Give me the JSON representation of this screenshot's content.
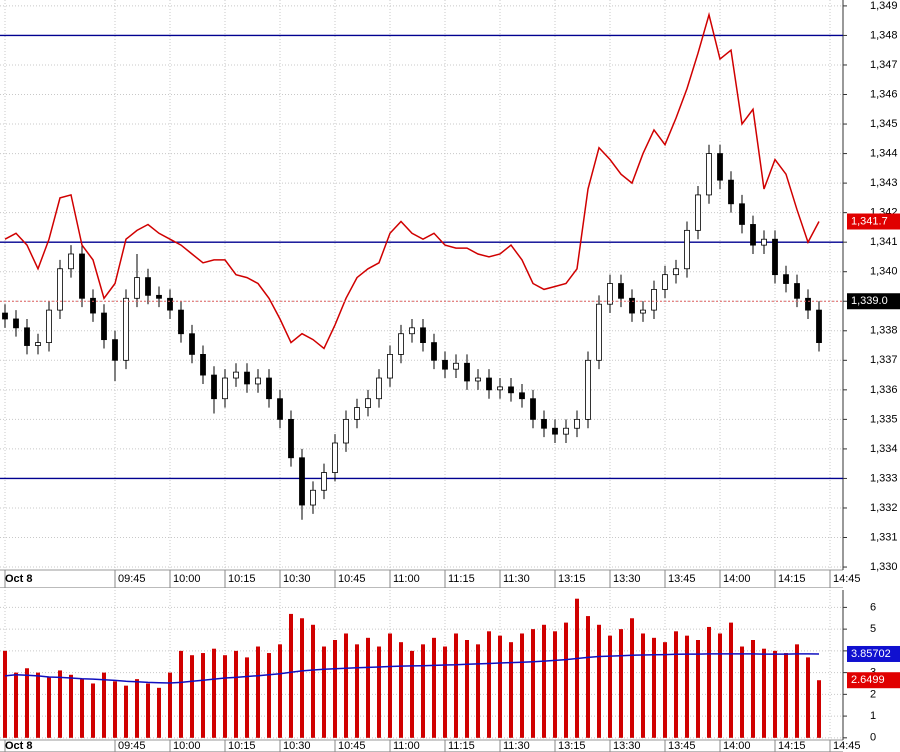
{
  "chart_data": [
    {
      "type": "candlestick",
      "categories": [
        "Oct 8",
        null,
        null,
        null,
        null,
        null,
        null,
        null,
        null,
        null,
        "09:45",
        null,
        null,
        null,
        null,
        "10:00",
        null,
        null,
        null,
        null,
        "10:15",
        null,
        null,
        null,
        null,
        "10:30",
        null,
        null,
        null,
        null,
        "10:45",
        null,
        null,
        null,
        null,
        "11:00",
        null,
        null,
        null,
        null,
        "11:15",
        null,
        null,
        null,
        null,
        "11:30",
        null,
        null,
        null,
        null,
        "13:15",
        null,
        null,
        null,
        null,
        "13:30",
        null,
        null,
        null,
        null,
        "13:45",
        null,
        null,
        null,
        null,
        "14:00",
        null,
        null,
        null,
        null,
        "14:15",
        null,
        null,
        null,
        null,
        "14:45"
      ],
      "open": [
        1338.6,
        1338.4,
        1338.1,
        1337.5,
        1337.6,
        1338.7,
        1340.1,
        1340.6,
        1339.1,
        1338.6,
        1337.7,
        1337.0,
        1339.1,
        1339.8,
        1339.2,
        1339.1,
        1338.7,
        1337.9,
        1337.2,
        1336.5,
        1335.7,
        1336.4,
        1336.6,
        1336.2,
        1336.4,
        1335.7,
        1335.0,
        1333.7,
        1332.1,
        1332.6,
        1333.2,
        1334.2,
        1335.0,
        1335.4,
        1335.7,
        1336.4,
        1337.2,
        1337.9,
        1338.1,
        1337.6,
        1337.0,
        1336.7,
        1336.9,
        1336.3,
        1336.4,
        1336.0,
        1336.1,
        1335.9,
        1335.7,
        1335.0,
        1334.7,
        1334.5,
        1334.7,
        1335.0,
        1337.0,
        1338.9,
        1339.6,
        1339.1,
        1338.6,
        1338.7,
        1339.4,
        1339.9,
        1340.1,
        1341.4,
        1342.6,
        1344.0,
        1343.1,
        1342.3,
        1341.6,
        1340.9,
        1341.1,
        1339.9,
        1339.6,
        1339.1,
        1338.7,
        null
      ],
      "high": [
        1338.9,
        1338.7,
        1338.4,
        1337.9,
        1339.0,
        1340.4,
        1340.9,
        1340.9,
        1339.4,
        1338.9,
        1338.0,
        1339.4,
        1340.6,
        1340.1,
        1339.5,
        1339.4,
        1339.0,
        1338.2,
        1337.5,
        1336.8,
        1336.7,
        1336.9,
        1336.9,
        1336.7,
        1336.7,
        1336.0,
        1335.3,
        1334.0,
        1332.9,
        1333.5,
        1334.5,
        1335.3,
        1335.7,
        1336.0,
        1336.7,
        1337.5,
        1338.2,
        1338.4,
        1338.4,
        1337.9,
        1337.3,
        1337.2,
        1337.2,
        1336.7,
        1336.7,
        1336.4,
        1336.4,
        1336.2,
        1336.0,
        1335.3,
        1335.0,
        1335.0,
        1335.3,
        1337.3,
        1339.2,
        1339.9,
        1339.9,
        1339.4,
        1339.0,
        1339.7,
        1340.2,
        1340.4,
        1341.7,
        1342.9,
        1344.3,
        1344.3,
        1343.4,
        1342.6,
        1341.9,
        1341.4,
        1341.4,
        1340.2,
        1339.9,
        1339.4,
        1339.0,
        null
      ],
      "low": [
        1338.1,
        1337.8,
        1337.2,
        1337.2,
        1337.3,
        1338.4,
        1339.8,
        1338.8,
        1338.3,
        1337.4,
        1336.3,
        1336.7,
        1338.8,
        1338.9,
        1338.8,
        1338.4,
        1337.6,
        1336.9,
        1336.2,
        1335.2,
        1335.4,
        1336.1,
        1335.9,
        1335.9,
        1335.4,
        1334.7,
        1333.4,
        1331.6,
        1331.8,
        1332.3,
        1332.9,
        1333.9,
        1334.7,
        1335.1,
        1335.4,
        1336.1,
        1336.9,
        1337.6,
        1337.3,
        1336.7,
        1336.4,
        1336.4,
        1336.0,
        1336.0,
        1335.7,
        1335.7,
        1335.6,
        1335.4,
        1334.7,
        1334.4,
        1334.2,
        1334.2,
        1334.4,
        1334.7,
        1336.7,
        1338.6,
        1338.8,
        1338.3,
        1338.3,
        1338.4,
        1339.1,
        1339.6,
        1339.8,
        1341.1,
        1342.3,
        1342.8,
        1342.0,
        1341.3,
        1340.6,
        1340.6,
        1339.6,
        1339.3,
        1338.8,
        1338.4,
        1337.3,
        null
      ],
      "close": [
        1338.4,
        1338.1,
        1337.5,
        1337.6,
        1338.7,
        1340.1,
        1340.6,
        1339.1,
        1338.6,
        1337.7,
        1337.0,
        1339.1,
        1339.8,
        1339.2,
        1339.1,
        1338.7,
        1337.9,
        1337.2,
        1336.5,
        1335.7,
        1336.4,
        1336.6,
        1336.2,
        1336.4,
        1335.7,
        1335.0,
        1333.7,
        1332.1,
        1332.6,
        1333.2,
        1334.2,
        1335.0,
        1335.4,
        1335.7,
        1336.4,
        1337.2,
        1337.9,
        1338.1,
        1337.6,
        1337.0,
        1336.7,
        1336.9,
        1336.3,
        1336.4,
        1336.0,
        1336.1,
        1335.9,
        1335.7,
        1335.0,
        1334.7,
        1334.5,
        1334.7,
        1335.0,
        1337.0,
        1338.9,
        1339.6,
        1339.1,
        1338.6,
        1338.7,
        1339.4,
        1339.9,
        1340.1,
        1341.4,
        1342.6,
        1344.0,
        1343.1,
        1342.3,
        1341.6,
        1340.9,
        1341.1,
        1339.9,
        1339.6,
        1339.1,
        1338.7,
        1337.6,
        null
      ],
      "up_color": "#ffffff",
      "down_color": "#000000",
      "wick_color": "#000000",
      "series": [
        {
          "color": "#d00000",
          "values": [
            1341.1,
            1341.3,
            1340.9,
            1340.1,
            1341.1,
            1342.5,
            1342.6,
            1340.9,
            1340.4,
            1339.1,
            1339.6,
            1341.1,
            1341.4,
            1341.6,
            1341.3,
            1341.1,
            1340.9,
            1340.6,
            1340.3,
            1340.4,
            1340.4,
            1339.9,
            1339.8,
            1339.6,
            1339.1,
            1338.4,
            1337.6,
            1337.9,
            1337.7,
            1337.4,
            1338.2,
            1339.1,
            1339.8,
            1340.1,
            1340.3,
            1341.3,
            1341.7,
            1341.3,
            1341.1,
            1341.3,
            1340.9,
            1340.8,
            1340.8,
            1340.6,
            1340.5,
            1340.6,
            1340.9,
            1340.4,
            1339.6,
            1339.4,
            1339.5,
            1339.6,
            1340.1,
            1342.8,
            1344.2,
            1343.8,
            1343.3,
            1343.0,
            1344.0,
            1344.8,
            1344.3,
            1345.2,
            1346.2,
            1347.4,
            1348.7,
            1347.2,
            1347.5,
            1345.0,
            1345.5,
            1342.8,
            1343.8,
            1343.3,
            1342.1,
            1341.0,
            1341.7,
            null
          ]
        }
      ],
      "levels": [
        1348,
        1341,
        1333
      ],
      "level_color": "#000090",
      "markers": [
        {
          "value": 1341.7,
          "label": "1,341.7",
          "color": "#e00000"
        },
        {
          "value": 1339.0,
          "label": "1,339.0",
          "color": "#000000",
          "line_color": "#e06060"
        }
      ],
      "ylim": [
        1329.9,
        1349.2
      ],
      "yticks": [
        {
          "value": 1330,
          "label": "1,330"
        },
        {
          "value": 1331,
          "label": "1,331"
        },
        {
          "value": 1332,
          "label": "1,332"
        },
        {
          "value": 1333,
          "label": "1,333"
        },
        {
          "value": 1334,
          "label": "1,334"
        },
        {
          "value": 1335,
          "label": "1,335"
        },
        {
          "value": 1336,
          "label": "1,336"
        },
        {
          "value": 1337,
          "label": "1,337"
        },
        {
          "value": 1338,
          "label": "1,338"
        },
        {
          "value": 1339,
          "label": "1,339"
        },
        {
          "value": 1340,
          "label": "1,340"
        },
        {
          "value": 1341,
          "label": "1,341"
        },
        {
          "value": 1342,
          "label": "1,342"
        },
        {
          "value": 1343,
          "label": "1,343"
        },
        {
          "value": 1344,
          "label": "1,344"
        },
        {
          "value": 1345,
          "label": "1,345"
        },
        {
          "value": 1346,
          "label": "1,346"
        },
        {
          "value": 1347,
          "label": "1,347"
        },
        {
          "value": 1348,
          "label": "1,348"
        },
        {
          "value": 1349,
          "label": "1,349"
        }
      ],
      "grid": true
    },
    {
      "type": "bar",
      "categories": [
        "Oct 8",
        null,
        null,
        null,
        null,
        null,
        null,
        null,
        null,
        null,
        "09:45",
        null,
        null,
        null,
        null,
        "10:00",
        null,
        null,
        null,
        null,
        "10:15",
        null,
        null,
        null,
        null,
        "10:30",
        null,
        null,
        null,
        null,
        "10:45",
        null,
        null,
        null,
        null,
        "11:00",
        null,
        null,
        null,
        null,
        "11:15",
        null,
        null,
        null,
        null,
        "11:30",
        null,
        null,
        null,
        null,
        "13:15",
        null,
        null,
        null,
        null,
        "13:30",
        null,
        null,
        null,
        null,
        "13:45",
        null,
        null,
        null,
        null,
        "14:00",
        null,
        null,
        null,
        null,
        "14:15",
        null,
        null,
        null,
        null,
        "14:45"
      ],
      "values": [
        4.0,
        3.0,
        3.2,
        3.0,
        2.8,
        3.1,
        2.9,
        2.7,
        2.5,
        3.0,
        2.6,
        2.4,
        2.7,
        2.5,
        2.3,
        3.0,
        4.0,
        3.8,
        3.9,
        4.1,
        3.8,
        4.0,
        3.7,
        4.2,
        3.9,
        4.3,
        5.7,
        5.5,
        5.2,
        4.2,
        4.5,
        4.8,
        4.3,
        4.6,
        4.2,
        4.8,
        4.4,
        4.0,
        4.3,
        4.6,
        4.2,
        4.8,
        4.5,
        4.3,
        4.9,
        4.7,
        4.4,
        4.8,
        5.0,
        5.2,
        4.9,
        5.3,
        6.4,
        5.6,
        5.2,
        4.7,
        5.0,
        5.5,
        4.8,
        4.6,
        4.4,
        4.9,
        4.7,
        4.5,
        5.1,
        4.8,
        5.3,
        4.2,
        4.5,
        4.1,
        4.0,
        3.9,
        4.3,
        3.7,
        2.6499,
        null
      ],
      "color": "#d00000",
      "series": [
        {
          "color": "#1010c0",
          "values": [
            2.85,
            2.9,
            2.88,
            2.85,
            2.8,
            2.78,
            2.75,
            2.72,
            2.7,
            2.67,
            2.64,
            2.6,
            2.58,
            2.55,
            2.53,
            2.52,
            2.55,
            2.6,
            2.65,
            2.7,
            2.75,
            2.78,
            2.82,
            2.86,
            2.9,
            2.95,
            3.02,
            3.08,
            3.12,
            3.15,
            3.18,
            3.2,
            3.22,
            3.24,
            3.26,
            3.28,
            3.3,
            3.31,
            3.32,
            3.33,
            3.35,
            3.36,
            3.38,
            3.4,
            3.42,
            3.44,
            3.46,
            3.48,
            3.5,
            3.53,
            3.56,
            3.6,
            3.65,
            3.7,
            3.74,
            3.76,
            3.78,
            3.8,
            3.81,
            3.82,
            3.83,
            3.84,
            3.85,
            3.85,
            3.86,
            3.86,
            3.86,
            3.86,
            3.86,
            3.85,
            3.85,
            3.85,
            3.86,
            3.86,
            3.85702,
            null
          ]
        }
      ],
      "markers": [
        {
          "value": 3.85702,
          "label": "3.85702",
          "color": "#1010d0"
        },
        {
          "value": 2.6499,
          "label": "2.6499",
          "color": "#e00000"
        }
      ],
      "ylim": [
        -0.1,
        6.8
      ],
      "yticks": [
        0,
        1,
        2,
        3,
        4,
        5,
        6
      ],
      "grid": true
    }
  ]
}
